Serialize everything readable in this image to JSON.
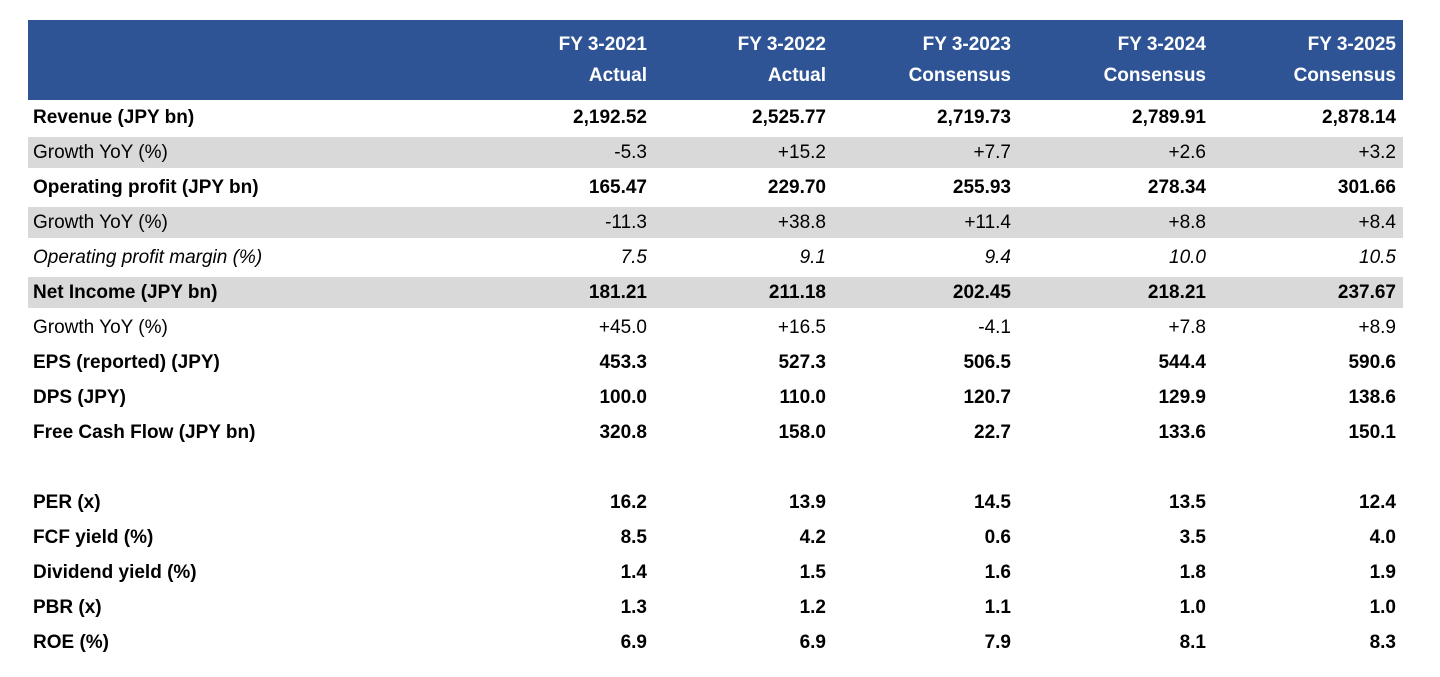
{
  "table": {
    "header": {
      "columns": [
        {
          "period": "FY 3-2021",
          "type": "Actual"
        },
        {
          "period": "FY 3-2022",
          "type": "Actual"
        },
        {
          "period": "FY 3-2023",
          "type": "Consensus"
        },
        {
          "period": "FY 3-2024",
          "type": "Consensus"
        },
        {
          "period": "FY 3-2025",
          "type": "Consensus"
        }
      ]
    },
    "rows": [
      {
        "label": "Revenue (JPY bn)",
        "values": [
          "2,192.52",
          "2,525.77",
          "2,719.73",
          "2,789.91",
          "2,878.14"
        ],
        "style": "bold",
        "shaded": false
      },
      {
        "label": "Growth YoY (%)",
        "values": [
          "-5.3",
          "+15.2",
          "+7.7",
          "+2.6",
          "+3.2"
        ],
        "style": "regular",
        "shaded": true
      },
      {
        "label": "Operating profit (JPY bn)",
        "values": [
          "165.47",
          "229.70",
          "255.93",
          "278.34",
          "301.66"
        ],
        "style": "bold",
        "shaded": false
      },
      {
        "label": "Growth YoY (%)",
        "values": [
          "-11.3",
          "+38.8",
          "+11.4",
          "+8.8",
          "+8.4"
        ],
        "style": "regular",
        "shaded": true
      },
      {
        "label": "Operating profit margin (%)",
        "values": [
          "7.5",
          "9.1",
          "9.4",
          "10.0",
          "10.5"
        ],
        "style": "italic",
        "shaded": false
      },
      {
        "label": "Net Income (JPY bn)",
        "values": [
          "181.21",
          "211.18",
          "202.45",
          "218.21",
          "237.67"
        ],
        "style": "bold",
        "shaded": true
      },
      {
        "label": "Growth YoY (%)",
        "values": [
          "+45.0",
          "+16.5",
          "-4.1",
          "+7.8",
          "+8.9"
        ],
        "style": "regular",
        "shaded": false
      },
      {
        "label": "EPS (reported) (JPY)",
        "values": [
          "453.3",
          "527.3",
          "506.5",
          "544.4",
          "590.6"
        ],
        "style": "bold",
        "shaded": false
      },
      {
        "label": "DPS (JPY)",
        "values": [
          "100.0",
          "110.0",
          "120.7",
          "129.9",
          "138.6"
        ],
        "style": "bold",
        "shaded": false
      },
      {
        "label": "Free Cash Flow (JPY bn)",
        "values": [
          "320.8",
          "158.0",
          "22.7",
          "133.6",
          "150.1"
        ],
        "style": "bold",
        "shaded": false
      },
      {
        "label": "",
        "values": [
          "",
          "",
          "",
          "",
          ""
        ],
        "style": "spacer",
        "shaded": false
      },
      {
        "label": "PER (x)",
        "values": [
          "16.2",
          "13.9",
          "14.5",
          "13.5",
          "12.4"
        ],
        "style": "bold",
        "shaded": false
      },
      {
        "label": "FCF yield (%)",
        "values": [
          "8.5",
          "4.2",
          "0.6",
          "3.5",
          "4.0"
        ],
        "style": "bold",
        "shaded": false
      },
      {
        "label": "Dividend yield (%)",
        "values": [
          "1.4",
          "1.5",
          "1.6",
          "1.8",
          "1.9"
        ],
        "style": "bold",
        "shaded": false
      },
      {
        "label": "PBR (x)",
        "values": [
          "1.3",
          "1.2",
          "1.1",
          "1.0",
          "1.0"
        ],
        "style": "bold",
        "shaded": false
      },
      {
        "label": "ROE (%)",
        "values": [
          "6.9",
          "6.9",
          "7.9",
          "8.1",
          "8.3"
        ],
        "style": "bold",
        "shaded": false
      }
    ],
    "colors": {
      "header_bg": "#2F5496",
      "header_text": "#FFFFFF",
      "shaded_row_bg": "#D9D9D9",
      "body_text": "#000000",
      "page_bg": "#FFFFFF"
    }
  }
}
